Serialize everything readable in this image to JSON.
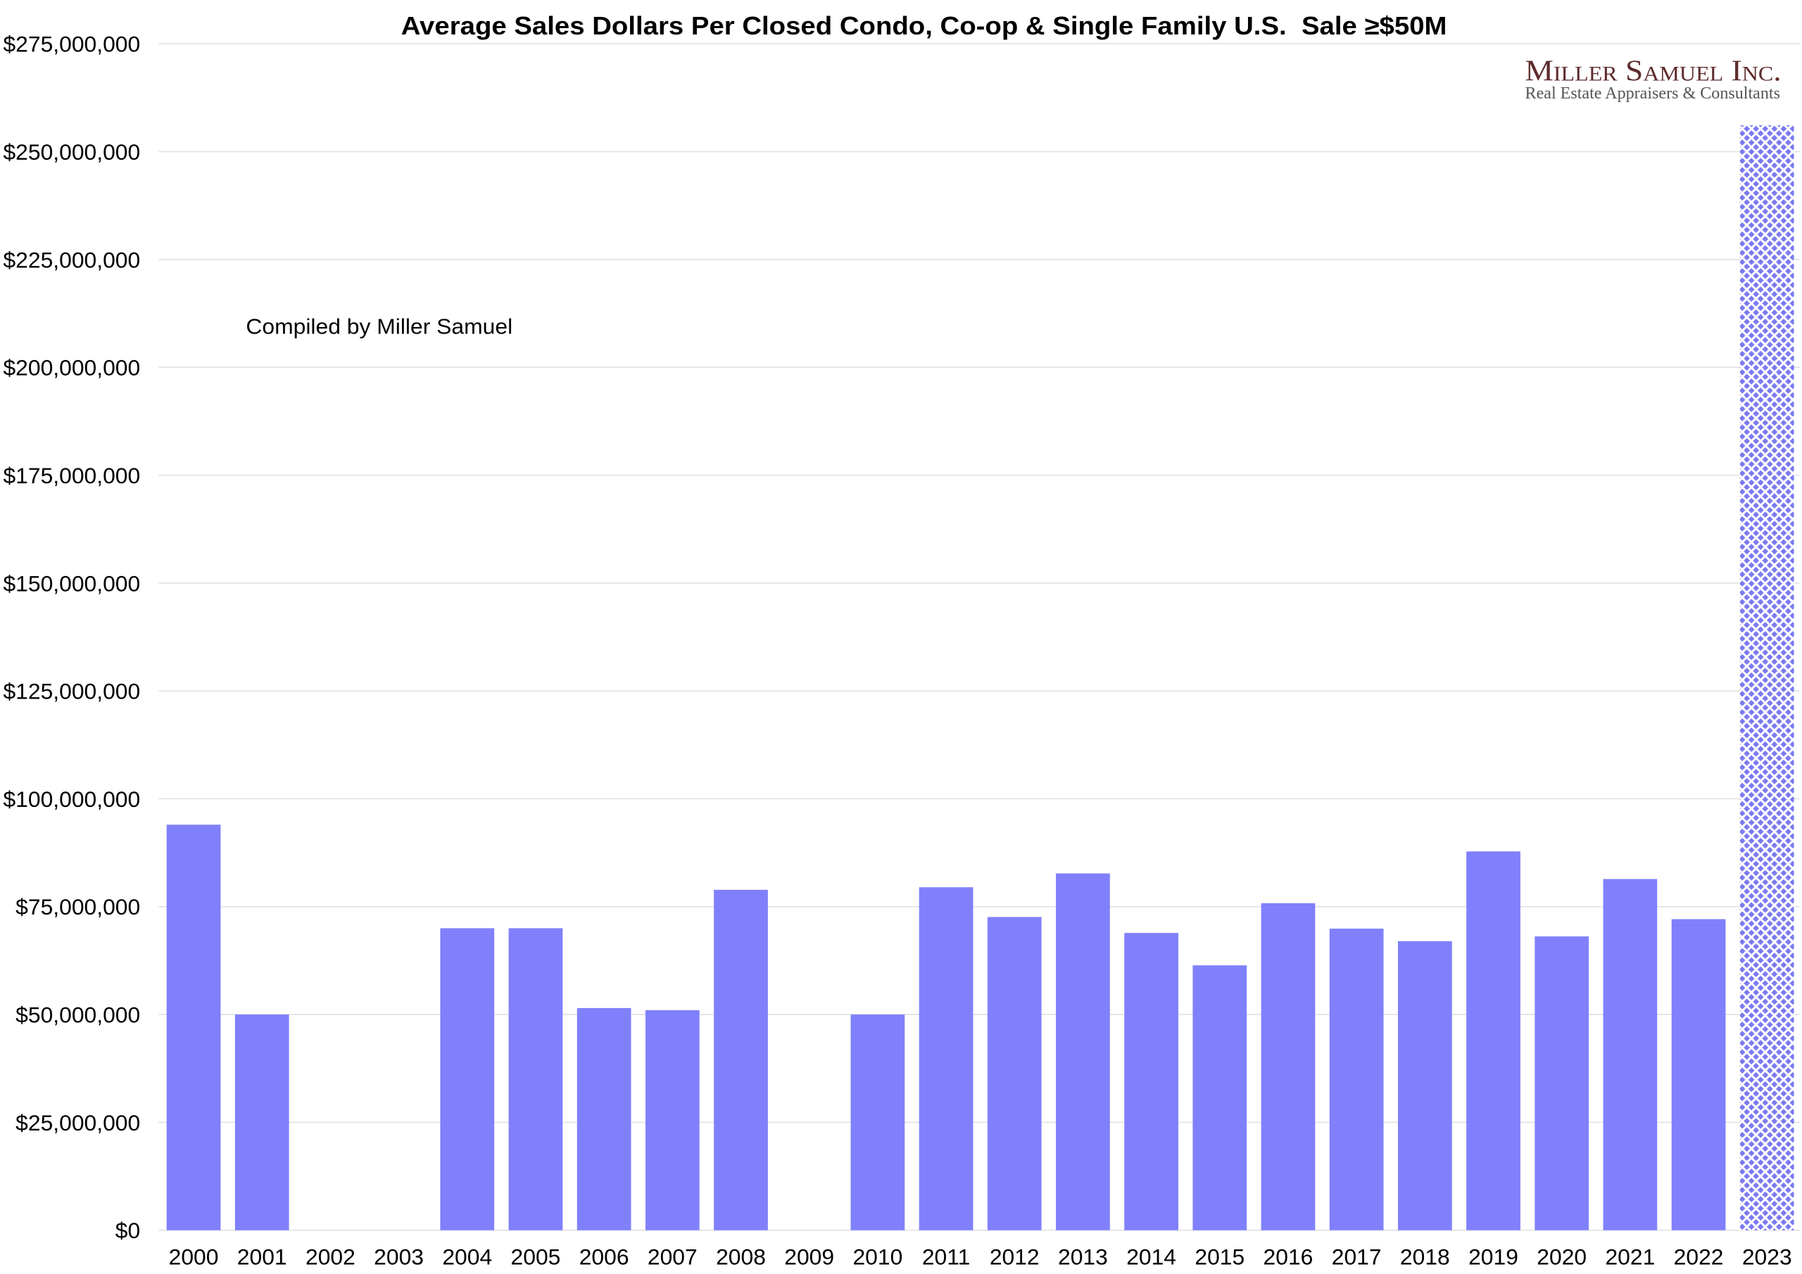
{
  "chart_data": {
    "type": "bar",
    "title": "Average Sales Dollars Per Closed Condo, Co-op & Single Family U.S.  Sale ≥$50M",
    "note": "Compiled by Miller Samuel",
    "categories": [
      "2000",
      "2001",
      "2002",
      "2003",
      "2004",
      "2005",
      "2006",
      "2007",
      "2008",
      "2009",
      "2010",
      "2011",
      "2012",
      "2013",
      "2014",
      "2015",
      "2016",
      "2017",
      "2018",
      "2019",
      "2020",
      "2021",
      "2022",
      "2023"
    ],
    "values": [
      94000000,
      50000000,
      null,
      null,
      70000000,
      70000000,
      51500000,
      51000000,
      78900000,
      null,
      50000000,
      79500000,
      72600000,
      82700000,
      68900000,
      61400000,
      75800000,
      69900000,
      67000000,
      87800000,
      68100000,
      81400000,
      72100000,
      256100000
    ],
    "ylim": [
      0,
      275000000
    ],
    "yticks": [
      0,
      25000000,
      50000000,
      75000000,
      100000000,
      125000000,
      150000000,
      175000000,
      200000000,
      225000000,
      250000000,
      275000000
    ],
    "ytick_labels": [
      "$0",
      "$25,000,000",
      "$50,000,000",
      "$75,000,000",
      "$100,000,000",
      "$125,000,000",
      "$150,000,000",
      "$175,000,000",
      "$200,000,000",
      "$225,000,000",
      "$250,000,000",
      "$275,000,000"
    ],
    "grid": true,
    "bar_color": "#8080fc",
    "pattern_bars": [
      "2023"
    ],
    "pattern_color": "#7a7af0"
  },
  "logo": {
    "name": "Miller Samuel Inc.",
    "tagline": "Real Estate Appraisers & Consultants",
    "name_color": "#5e2b2b",
    "tagline_color": "#555555"
  }
}
